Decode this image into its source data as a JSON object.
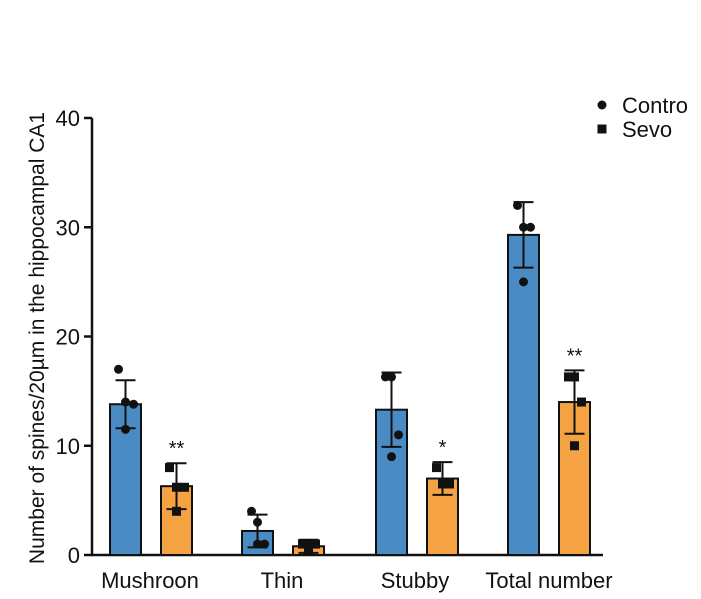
{
  "chart_data": {
    "type": "bar",
    "ylabel": "Number of spines/20µm in the hippocampal CA1",
    "ylim": [
      0,
      40
    ],
    "yticks": [
      0,
      10,
      20,
      30,
      40
    ],
    "categories": [
      "Mushroon",
      "Thin",
      "Stubby",
      "Total number"
    ],
    "legend_position": "top-right",
    "grid": false,
    "series": [
      {
        "name": "Contro",
        "marker": "circle",
        "color": "#4a8bc4",
        "values": [
          13.8,
          2.2,
          13.3,
          29.3
        ],
        "error": [
          2.2,
          1.5,
          3.4,
          3.0
        ],
        "points": [
          [
            17.0,
            14.0,
            13.8,
            11.5
          ],
          [
            4.0,
            3.0,
            1.0,
            1.0
          ],
          [
            16.3,
            16.3,
            11.0,
            9.0
          ],
          [
            32.0,
            30.0,
            30.0,
            25.0
          ]
        ],
        "significance": [
          "",
          "",
          "",
          ""
        ]
      },
      {
        "name": "Sevo",
        "marker": "square",
        "color": "#f5a243",
        "values": [
          6.3,
          0.8,
          7.0,
          14.0
        ],
        "error": [
          2.1,
          0.6,
          1.5,
          2.9
        ],
        "points": [
          [
            8.0,
            6.2,
            6.2,
            4.0
          ],
          [
            1.0,
            1.0,
            1.0,
            0.5
          ],
          [
            8.0,
            6.5,
            6.5,
            6.5
          ],
          [
            16.3,
            16.3,
            14.0,
            10.0
          ]
        ],
        "significance": [
          "**",
          "",
          "*",
          "**"
        ]
      }
    ]
  }
}
